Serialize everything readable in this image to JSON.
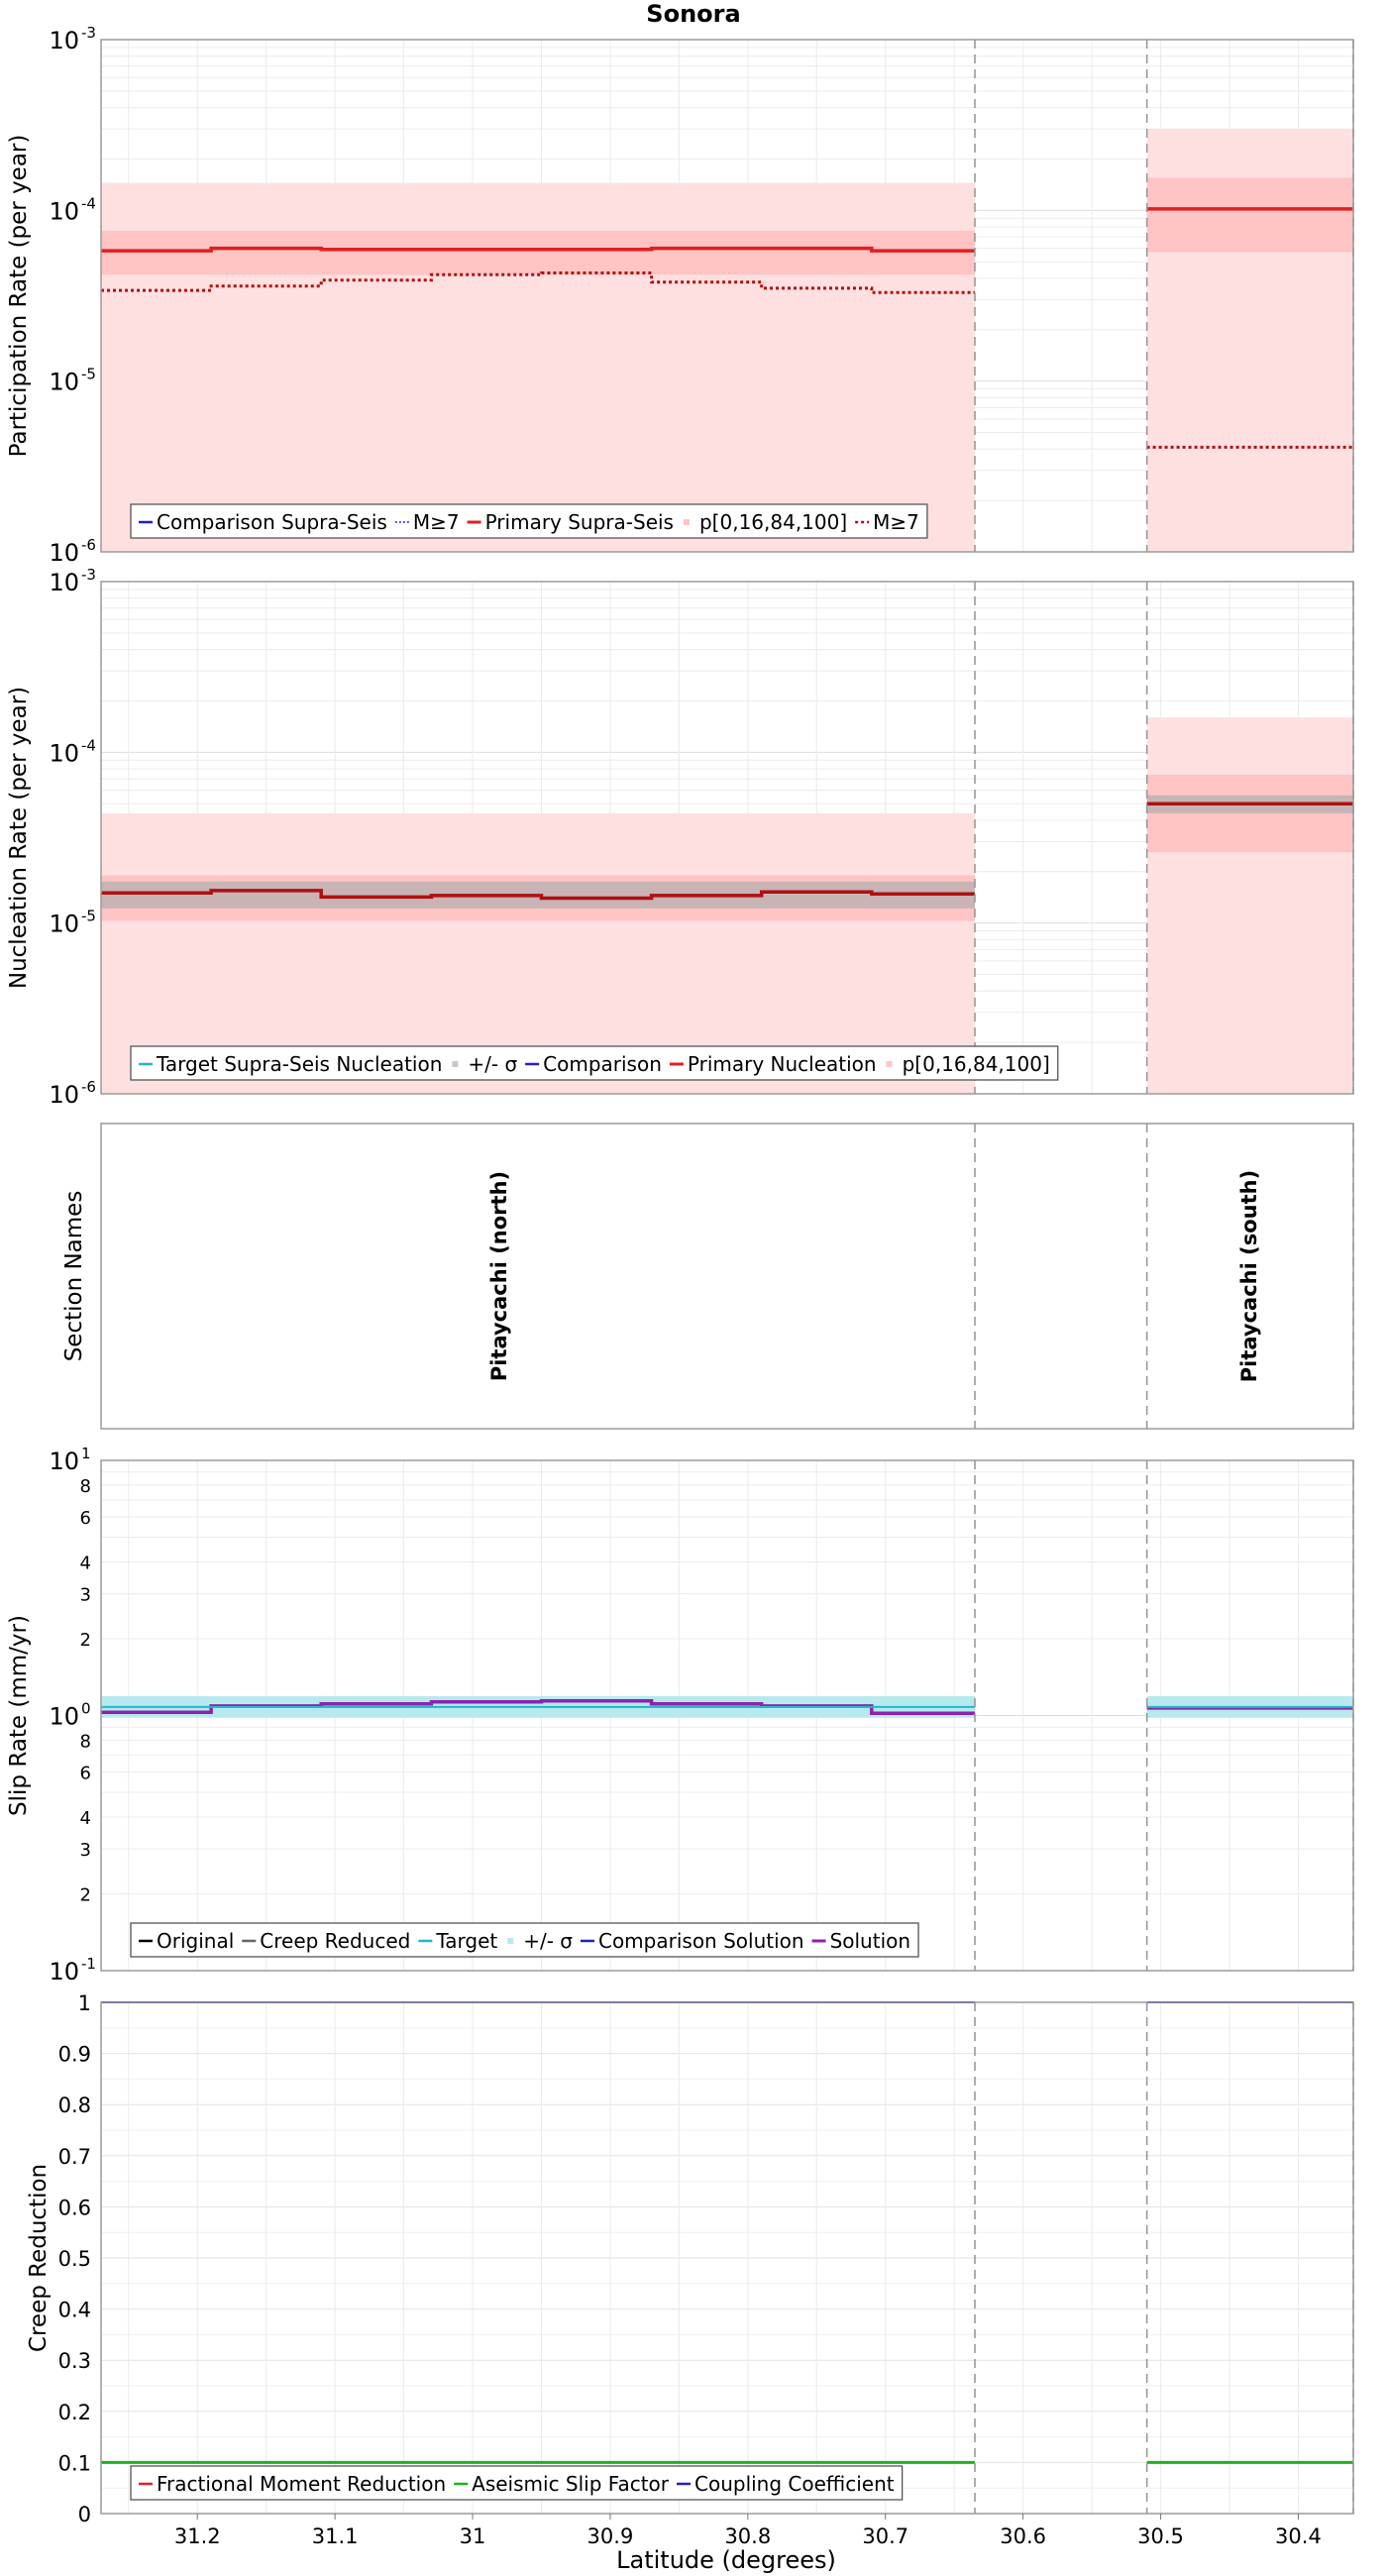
{
  "title": "Sonora",
  "xlabel": "Latitude (degrees)",
  "colors": {
    "primary": "#e02020",
    "primary_dark": "#b01010",
    "band_light": "#ffe0e0",
    "band_mid": "#ffc4c4",
    "band_dark": "#ffa8a8",
    "target": "#20b8c8",
    "target_band": "#b6eaee",
    "solution": "#9020b0",
    "comparison": "#2020c0",
    "aseismic": "#20b020",
    "grey": "#8a8a8a"
  },
  "chart_data": [
    {
      "type": "line",
      "id": "participation",
      "ylabel": "Participation Rate (per year)",
      "yscale": "log",
      "ylim": [
        1e-06,
        0.001
      ],
      "xlim": [
        31.27,
        30.36
      ],
      "tick_labels": [
        "10",
        "10",
        "10",
        "10"
      ],
      "tick_exps": [
        "-6",
        "-5",
        "-4",
        "-3"
      ],
      "legend": [
        "Comparison Supra-Seis",
        "M≥7",
        "Primary Supra-Seis",
        "p[0,16,84,100]",
        "M≥7"
      ],
      "series": [
        {
          "name": "Primary Supra-Seis",
          "x": [
            31.27,
            31.19,
            31.19,
            31.11,
            31.11,
            31.03,
            31.03,
            30.95,
            30.95,
            30.87,
            30.87,
            30.79,
            30.79,
            30.71,
            30.71,
            30.635
          ],
          "y": [
            5.8e-05,
            5.8e-05,
            6e-05,
            6e-05,
            5.9e-05,
            5.9e-05,
            5.9e-05,
            5.9e-05,
            5.9e-05,
            5.9e-05,
            6e-05,
            6e-05,
            6e-05,
            6e-05,
            5.8e-05,
            5.8e-05
          ]
        },
        {
          "name": "Primary Supra-Seis (south)",
          "x": [
            30.51,
            30.36
          ],
          "y": [
            0.000102,
            0.000102
          ]
        },
        {
          "name": "M≥7",
          "x": [
            31.27,
            31.19,
            31.19,
            31.11,
            31.11,
            31.03,
            31.03,
            30.95,
            30.95,
            30.87,
            30.87,
            30.79,
            30.79,
            30.71,
            30.71,
            30.635
          ],
          "y": [
            3.4e-05,
            3.4e-05,
            3.6e-05,
            3.6e-05,
            3.9e-05,
            3.9e-05,
            4.2e-05,
            4.2e-05,
            4.3e-05,
            4.3e-05,
            3.8e-05,
            3.8e-05,
            3.5e-05,
            3.5e-05,
            3.3e-05,
            3.3e-05
          ]
        },
        {
          "name": "M≥7 (south)",
          "x": [
            30.51,
            30.36
          ],
          "y": [
            4.1e-06,
            4.1e-06
          ]
        }
      ],
      "bands": [
        {
          "x": [
            30.635,
            31.27
          ],
          "lo": 1e-06,
          "hi": 0.000145,
          "level": "outer"
        },
        {
          "x": [
            30.635,
            31.27
          ],
          "lo": 4.2e-05,
          "hi": 7.6e-05,
          "level": "inner"
        },
        {
          "x": [
            30.36,
            30.51
          ],
          "lo": 1e-06,
          "hi": 0.0003,
          "level": "outer"
        },
        {
          "x": [
            30.36,
            30.51
          ],
          "lo": 5.7e-05,
          "hi": 0.000155,
          "level": "inner"
        }
      ]
    },
    {
      "type": "line",
      "id": "nucleation",
      "ylabel": "Nucleation Rate (per year)",
      "yscale": "log",
      "ylim": [
        1e-06,
        0.001
      ],
      "xlim": [
        31.27,
        30.36
      ],
      "tick_labels": [
        "10",
        "10",
        "10",
        "10"
      ],
      "tick_exps": [
        "-6",
        "-5",
        "-4",
        "-3"
      ],
      "legend": [
        "Target Supra-Seis Nucleation",
        "+/- σ",
        "Comparison",
        "Primary Nucleation",
        "p[0,16,84,100]"
      ],
      "series": [
        {
          "name": "Primary Nucleation",
          "x": [
            31.27,
            31.19,
            31.19,
            31.11,
            31.11,
            31.03,
            31.03,
            30.95,
            30.95,
            30.87,
            30.87,
            30.79,
            30.79,
            30.71,
            30.71,
            30.635
          ],
          "y": [
            1.5e-05,
            1.5e-05,
            1.55e-05,
            1.55e-05,
            1.42e-05,
            1.42e-05,
            1.45e-05,
            1.45e-05,
            1.4e-05,
            1.4e-05,
            1.45e-05,
            1.45e-05,
            1.52e-05,
            1.52e-05,
            1.48e-05,
            1.48e-05
          ]
        },
        {
          "name": "Primary Nucleation (south)",
          "x": [
            30.51,
            30.36
          ],
          "y": [
            5e-05,
            5e-05
          ]
        }
      ],
      "bands": [
        {
          "x": [
            30.635,
            31.27
          ],
          "lo": 1e-06,
          "hi": 4.4e-05,
          "level": "outer"
        },
        {
          "x": [
            30.635,
            31.27
          ],
          "lo": 1.03e-05,
          "hi": 1.9e-05,
          "level": "inner"
        },
        {
          "x": [
            30.635,
            31.27
          ],
          "lo": 1.22e-05,
          "hi": 1.75e-05,
          "level": "target"
        },
        {
          "x": [
            30.36,
            30.51
          ],
          "lo": 1e-06,
          "hi": 0.00016,
          "level": "outer"
        },
        {
          "x": [
            30.36,
            30.51
          ],
          "lo": 2.6e-05,
          "hi": 7.4e-05,
          "level": "inner"
        },
        {
          "x": [
            30.36,
            30.51
          ],
          "lo": 4.4e-05,
          "hi": 5.6e-05,
          "level": "target"
        }
      ]
    },
    {
      "type": "table",
      "id": "sections",
      "ylabel": "Section Names",
      "xlim": [
        31.27,
        30.36
      ],
      "labels": [
        {
          "text": "Pitaycachi (north)",
          "x": 30.98
        },
        {
          "text": "Pitaycachi (south)",
          "x": 30.435
        }
      ]
    },
    {
      "type": "line",
      "id": "slip",
      "ylabel": "Slip Rate (mm/yr)",
      "yscale": "log",
      "ylim": [
        0.1,
        10
      ],
      "xlim": [
        31.27,
        30.36
      ],
      "major_tick_labels": [
        "10",
        "10",
        "10"
      ],
      "major_tick_exps": [
        "-1",
        "0",
        "1"
      ],
      "minor_ticks": [
        {
          "value": 0.2,
          "label": "2"
        },
        {
          "value": 0.3,
          "label": "3"
        },
        {
          "value": 0.4,
          "label": "4"
        },
        {
          "value": 0.6,
          "label": "6"
        },
        {
          "value": 0.8,
          "label": "8"
        },
        {
          "value": 2,
          "label": "2"
        },
        {
          "value": 3,
          "label": "3"
        },
        {
          "value": 4,
          "label": "4"
        },
        {
          "value": 6,
          "label": "6"
        },
        {
          "value": 8,
          "label": "8"
        }
      ],
      "legend": [
        "Original",
        "Creep Reduced",
        "Target",
        "+/- σ",
        "Comparison Solution",
        "Solution"
      ],
      "series": [
        {
          "name": "Solution",
          "x": [
            31.27,
            31.19,
            31.19,
            31.11,
            31.11,
            31.03,
            31.03,
            30.95,
            30.95,
            30.87,
            30.87,
            30.79,
            30.79,
            30.71,
            30.71,
            30.635
          ],
          "y": [
            1.03,
            1.03,
            1.09,
            1.09,
            1.11,
            1.11,
            1.13,
            1.13,
            1.14,
            1.14,
            1.11,
            1.11,
            1.09,
            1.09,
            1.02,
            1.02
          ]
        },
        {
          "name": "Solution (south)",
          "x": [
            30.51,
            30.36
          ],
          "y": [
            1.07,
            1.07
          ]
        },
        {
          "name": "Target",
          "x": [
            31.27,
            30.635
          ],
          "y": [
            1.08,
            1.08
          ]
        },
        {
          "name": "Target (south)",
          "x": [
            30.51,
            30.36
          ],
          "y": [
            1.08,
            1.08
          ]
        }
      ],
      "bands": [
        {
          "x": [
            30.635,
            31.27
          ],
          "lo": 0.98,
          "hi": 1.19,
          "level": "target"
        },
        {
          "x": [
            30.36,
            30.51
          ],
          "lo": 0.98,
          "hi": 1.19,
          "level": "target"
        }
      ]
    },
    {
      "type": "line",
      "id": "creep",
      "ylabel": "Creep Reduction",
      "yscale": "linear",
      "ylim": [
        0,
        1
      ],
      "xlim": [
        31.27,
        30.36
      ],
      "yticks": [
        "0",
        "0.1",
        "0.2",
        "0.3",
        "0.4",
        "0.5",
        "0.6",
        "0.7",
        "0.8",
        "0.9",
        "1"
      ],
      "xticks": [
        "31.2",
        "31.1",
        "31",
        "30.9",
        "30.8",
        "30.7",
        "30.6",
        "30.5",
        "30.4"
      ],
      "xtick_values": [
        31.2,
        31.1,
        31.0,
        30.9,
        30.8,
        30.7,
        30.6,
        30.5,
        30.4
      ],
      "legend": [
        "Fractional Moment Reduction",
        "Aseismic Slip Factor",
        "Coupling Coefficient"
      ],
      "series": [
        {
          "name": "Aseismic Slip Factor",
          "x": [
            31.27,
            30.635
          ],
          "y": [
            0.1,
            0.1
          ]
        },
        {
          "name": "Aseismic Slip Factor (south)",
          "x": [
            30.51,
            30.36
          ],
          "y": [
            0.1,
            0.1
          ]
        },
        {
          "name": "Coupling Coefficient",
          "x": [
            31.27,
            30.635
          ],
          "y": [
            1.0,
            1.0
          ]
        },
        {
          "name": "Coupling Coefficient (south)",
          "x": [
            30.51,
            30.36
          ],
          "y": [
            1.0,
            1.0
          ]
        }
      ]
    }
  ],
  "section_boundaries": [
    30.635,
    30.51,
    30.36
  ]
}
